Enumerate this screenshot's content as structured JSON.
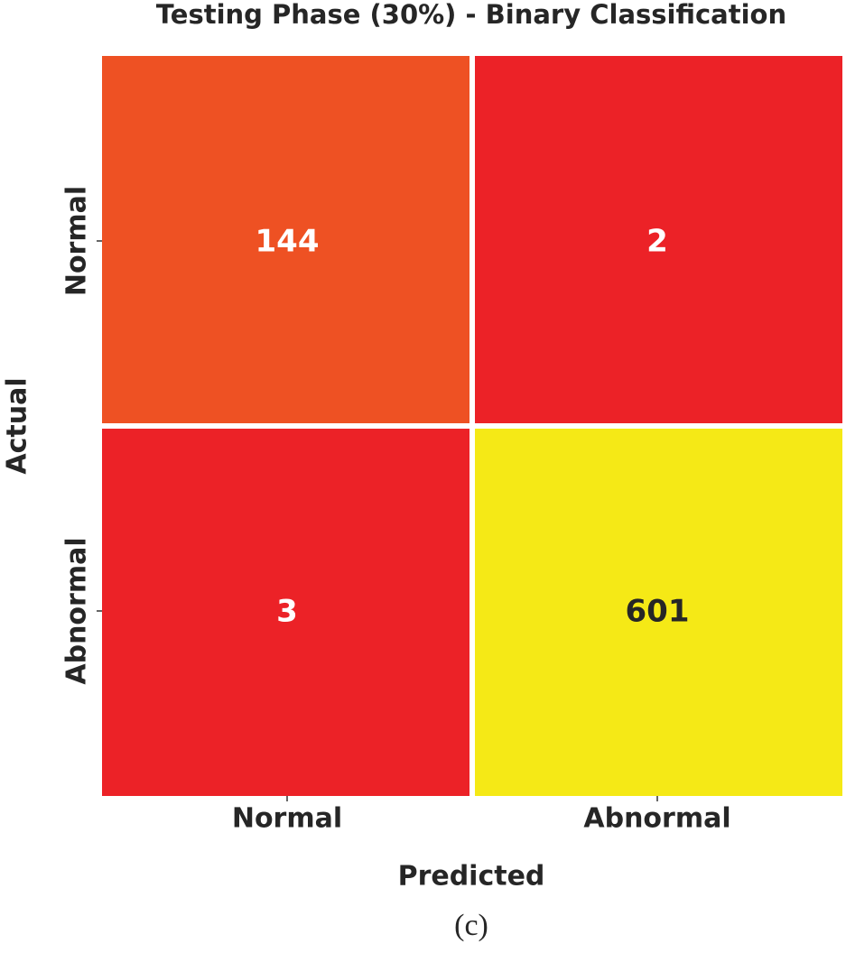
{
  "chart_data": {
    "type": "heatmap",
    "title": "Testing Phase (30%) - Binary Classification",
    "x_label": "Predicted",
    "y_label": "Actual",
    "x_categories": [
      "Normal",
      "Abnormal"
    ],
    "y_categories": [
      "Normal",
      "Abnormal"
    ],
    "values": [
      [
        144,
        2
      ],
      [
        3,
        601
      ]
    ],
    "colormap": [
      "#ec2227",
      "#f5e916"
    ],
    "caption": "(c)"
  }
}
